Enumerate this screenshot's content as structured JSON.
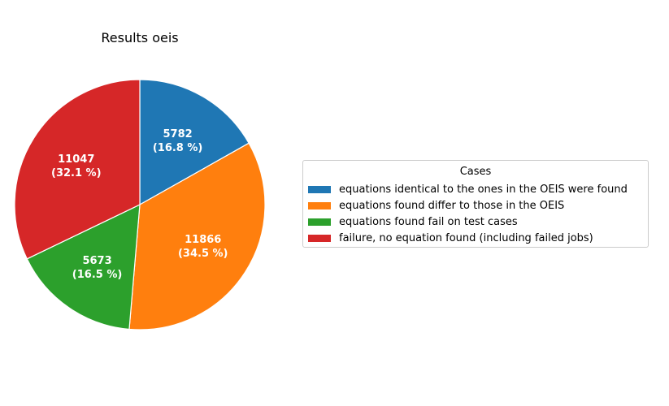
{
  "chart_data": {
    "type": "pie",
    "title": "Results oeis",
    "start_angle_deg": 90,
    "direction": "clockwise",
    "slices": [
      {
        "label": "equations identical to the ones in the OEIS were found",
        "value": 5782,
        "percent_label": "(16.8 %)",
        "color": "#1f77b4"
      },
      {
        "label": "equations found differ to those in the OEIS",
        "value": 11866,
        "percent_label": "(34.5 %)",
        "color": "#ff7f0e"
      },
      {
        "label": "equations found fail on test cases",
        "value": 5673,
        "percent_label": "(16.5 %)",
        "color": "#2ca02c"
      },
      {
        "label": "failure, no equation found (including failed jobs)",
        "value": 11047,
        "percent_label": "(32.1 %)",
        "color": "#d62728"
      }
    ],
    "legend": {
      "title": "Cases",
      "placement": "right"
    }
  }
}
